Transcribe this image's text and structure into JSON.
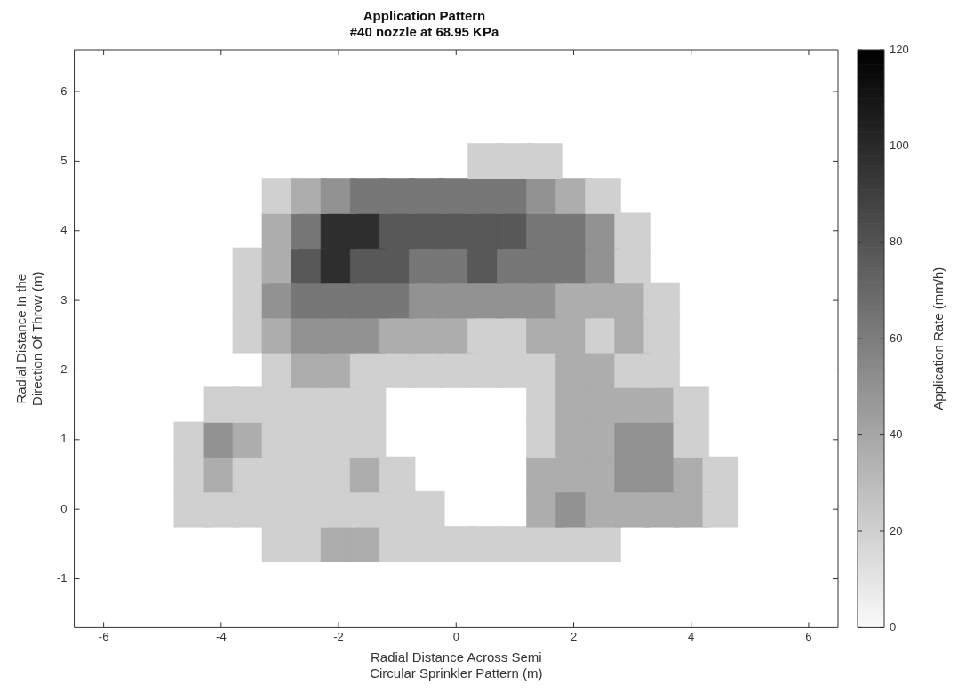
{
  "chart_data": {
    "type": "scatter",
    "title": "Application Pattern",
    "subtitle": "#40 nozzle at 68.95 KPa",
    "xlabel": "Radial Distance Across Semi\nCircular Sprinkler Pattern (m)",
    "ylabel": "Radial Distance In the\nDirection Of Throw (m)",
    "clabel": "Application Rate (mm/h)",
    "xlim": [
      -6.5,
      6.5
    ],
    "xticks": [
      -6,
      -4,
      -2,
      0,
      2,
      4,
      6
    ],
    "ylim": [
      -1.7,
      6.6
    ],
    "yticks": [
      -1,
      0,
      1,
      2,
      3,
      4,
      5,
      6
    ],
    "clim": [
      0,
      120
    ],
    "cticks": [
      0,
      20,
      40,
      60,
      80,
      100,
      120
    ],
    "marker": "square",
    "grid": false,
    "legend": false,
    "series": [
      {
        "x": [
          0.5,
          1,
          1.5
        ],
        "values": [
          5,
          5,
          5
        ],
        "cvalues": [
          20,
          20,
          20
        ],
        "colors": [
          "#d0d0d0",
          "#d0d0d0",
          "#d0d0d0"
        ]
      },
      {
        "x": [
          -3,
          -2.5,
          -2,
          -1.5,
          -1,
          -0.5,
          0,
          0.5,
          1,
          1.5,
          2,
          2.5
        ],
        "values": [
          4.5,
          4.5,
          4.5,
          4.5,
          4.5,
          4.5,
          4.5,
          4.5,
          4.5,
          4.5,
          4.5,
          4.5
        ],
        "cvalues": [
          20,
          37,
          50,
          63,
          63,
          63,
          63,
          63,
          63,
          50,
          37,
          20
        ],
        "colors": [
          "#d0d0d0",
          "#adadad",
          "#929292",
          "#777777",
          "#777777",
          "#777777",
          "#777777",
          "#777777",
          "#777777",
          "#929292",
          "#adadad",
          "#d0d0d0"
        ]
      },
      {
        "x": [
          -3,
          -2.5,
          -2,
          -1.5,
          -1,
          -0.5,
          0,
          0.5,
          1,
          1.5,
          2,
          2.5,
          3
        ],
        "values": [
          4,
          4,
          4,
          4,
          4,
          4,
          4,
          4,
          4,
          4,
          4,
          4,
          4
        ],
        "cvalues": [
          37,
          63,
          98,
          98,
          78,
          78,
          78,
          78,
          78,
          63,
          63,
          50,
          20
        ],
        "colors": [
          "#adadad",
          "#777777",
          "#2e2e2e",
          "#2e2e2e",
          "#585858",
          "#585858",
          "#585858",
          "#585858",
          "#585858",
          "#777777",
          "#777777",
          "#929292",
          "#d0d0d0"
        ]
      },
      {
        "x": [
          -3.5,
          -3,
          -2.5,
          -2,
          -1.5,
          -1,
          -0.5,
          0,
          0.5,
          1,
          1.5,
          2,
          2.5,
          3
        ],
        "values": [
          3.5,
          3.5,
          3.5,
          3.5,
          3.5,
          3.5,
          3.5,
          3.5,
          3.5,
          3.5,
          3.5,
          3.5,
          3.5,
          3.5
        ],
        "cvalues": [
          20,
          37,
          78,
          98,
          78,
          78,
          63,
          63,
          78,
          63,
          63,
          63,
          50,
          20
        ],
        "colors": [
          "#d0d0d0",
          "#adadad",
          "#585858",
          "#2e2e2e",
          "#585858",
          "#585858",
          "#777777",
          "#777777",
          "#585858",
          "#777777",
          "#777777",
          "#777777",
          "#929292",
          "#d0d0d0"
        ]
      },
      {
        "x": [
          -3.5,
          -3,
          -2.5,
          -2,
          -1.5,
          -1,
          -0.5,
          0,
          0.5,
          1,
          1.5,
          2,
          2.5,
          3,
          3.5
        ],
        "values": [
          3,
          3,
          3,
          3,
          3,
          3,
          3,
          3,
          3,
          3,
          3,
          3,
          3,
          3,
          3
        ],
        "cvalues": [
          20,
          50,
          63,
          63,
          63,
          63,
          50,
          50,
          50,
          50,
          50,
          37,
          37,
          37,
          20
        ],
        "colors": [
          "#d0d0d0",
          "#929292",
          "#777777",
          "#777777",
          "#777777",
          "#777777",
          "#929292",
          "#929292",
          "#929292",
          "#929292",
          "#929292",
          "#adadad",
          "#adadad",
          "#adadad",
          "#d0d0d0"
        ]
      },
      {
        "x": [
          -3.5,
          -3,
          -2.5,
          -2,
          -1.5,
          -1,
          -0.5,
          0,
          0.5,
          1,
          1.5,
          2,
          2.5,
          3,
          3.5
        ],
        "values": [
          2.5,
          2.5,
          2.5,
          2.5,
          2.5,
          2.5,
          2.5,
          2.5,
          2.5,
          2.5,
          2.5,
          2.5,
          2.5,
          2.5,
          2.5
        ],
        "cvalues": [
          20,
          37,
          50,
          50,
          50,
          37,
          37,
          37,
          20,
          20,
          37,
          37,
          20,
          37,
          20
        ],
        "colors": [
          "#d0d0d0",
          "#adadad",
          "#929292",
          "#929292",
          "#929292",
          "#adadad",
          "#adadad",
          "#adadad",
          "#d0d0d0",
          "#d0d0d0",
          "#adadad",
          "#adadad",
          "#d0d0d0",
          "#adadad",
          "#d0d0d0"
        ]
      },
      {
        "x": [
          -3,
          -2.5,
          -2,
          -1.5,
          -1,
          -0.5,
          0,
          0.5,
          1,
          1.5,
          2,
          2.5,
          3,
          3.5
        ],
        "values": [
          2,
          2,
          2,
          2,
          2,
          2,
          2,
          2,
          2,
          2,
          2,
          2,
          2,
          2
        ],
        "cvalues": [
          20,
          37,
          37,
          20,
          20,
          20,
          20,
          20,
          20,
          20,
          37,
          37,
          20,
          20
        ],
        "colors": [
          "#d0d0d0",
          "#adadad",
          "#adadad",
          "#d0d0d0",
          "#d0d0d0",
          "#d0d0d0",
          "#d0d0d0",
          "#d0d0d0",
          "#d0d0d0",
          "#d0d0d0",
          "#adadad",
          "#adadad",
          "#d0d0d0",
          "#d0d0d0"
        ]
      },
      {
        "x": [
          -4,
          -3.5,
          -3,
          -2.5,
          -2,
          -1.5,
          1.5,
          2,
          2.5,
          3,
          3.5,
          4
        ],
        "values": [
          1.5,
          1.5,
          1.5,
          1.5,
          1.5,
          1.5,
          1.5,
          1.5,
          1.5,
          1.5,
          1.5,
          1.5
        ],
        "cvalues": [
          20,
          20,
          20,
          20,
          20,
          20,
          20,
          37,
          37,
          37,
          37,
          20
        ],
        "colors": [
          "#d0d0d0",
          "#d0d0d0",
          "#d0d0d0",
          "#d0d0d0",
          "#d0d0d0",
          "#d0d0d0",
          "#d0d0d0",
          "#adadad",
          "#adadad",
          "#adadad",
          "#adadad",
          "#d0d0d0"
        ]
      },
      {
        "x": [
          -4.5,
          -4,
          -3.5,
          -3,
          -2.5,
          -2,
          -1.5,
          1.5,
          2,
          2.5,
          3,
          3.5,
          4
        ],
        "values": [
          1,
          1,
          1,
          1,
          1,
          1,
          1,
          1,
          1,
          1,
          1,
          1,
          1
        ],
        "cvalues": [
          20,
          50,
          37,
          20,
          20,
          20,
          20,
          20,
          37,
          37,
          50,
          50,
          20
        ],
        "colors": [
          "#d0d0d0",
          "#929292",
          "#adadad",
          "#d0d0d0",
          "#d0d0d0",
          "#d0d0d0",
          "#d0d0d0",
          "#d0d0d0",
          "#adadad",
          "#adadad",
          "#929292",
          "#929292",
          "#d0d0d0"
        ]
      },
      {
        "x": [
          -4.5,
          -4,
          -3.5,
          -3,
          -2.5,
          -2,
          -1.5,
          -1,
          1.5,
          2,
          2.5,
          3,
          3.5,
          4,
          4.5
        ],
        "values": [
          0.5,
          0.5,
          0.5,
          0.5,
          0.5,
          0.5,
          0.5,
          0.5,
          0.5,
          0.5,
          0.5,
          0.5,
          0.5,
          0.5,
          0.5
        ],
        "cvalues": [
          20,
          37,
          20,
          20,
          20,
          20,
          37,
          20,
          37,
          37,
          37,
          50,
          50,
          37,
          20
        ],
        "colors": [
          "#d0d0d0",
          "#adadad",
          "#d0d0d0",
          "#d0d0d0",
          "#d0d0d0",
          "#d0d0d0",
          "#adadad",
          "#d0d0d0",
          "#adadad",
          "#adadad",
          "#adadad",
          "#929292",
          "#929292",
          "#adadad",
          "#d0d0d0"
        ]
      },
      {
        "x": [
          -4.5,
          -4,
          -3.5,
          -3,
          -2.5,
          -2,
          -1.5,
          -1,
          -0.5,
          1.5,
          2,
          2.5,
          3,
          3.5,
          4,
          4.5
        ],
        "values": [
          0,
          0,
          0,
          0,
          0,
          0,
          0,
          0,
          0,
          0,
          0,
          0,
          0,
          0,
          0,
          0
        ],
        "cvalues": [
          20,
          20,
          20,
          20,
          20,
          20,
          20,
          20,
          20,
          37,
          50,
          37,
          37,
          37,
          37,
          20
        ],
        "colors": [
          "#d0d0d0",
          "#d0d0d0",
          "#d0d0d0",
          "#d0d0d0",
          "#d0d0d0",
          "#d0d0d0",
          "#d0d0d0",
          "#d0d0d0",
          "#d0d0d0",
          "#adadad",
          "#929292",
          "#adadad",
          "#adadad",
          "#adadad",
          "#adadad",
          "#d0d0d0"
        ]
      },
      {
        "x": [
          -3,
          -2.5,
          -2,
          -1.5,
          -1,
          -0.5,
          0,
          0.5,
          1,
          1.5,
          2,
          2.5
        ],
        "values": [
          -0.5,
          -0.5,
          -0.5,
          -0.5,
          -0.5,
          -0.5,
          -0.5,
          -0.5,
          -0.5,
          -0.5,
          -0.5,
          -0.5
        ],
        "cvalues": [
          20,
          20,
          37,
          37,
          20,
          20,
          20,
          20,
          20,
          20,
          20,
          20
        ],
        "colors": [
          "#d0d0d0",
          "#d0d0d0",
          "#adadad",
          "#adadad",
          "#d0d0d0",
          "#d0d0d0",
          "#d0d0d0",
          "#d0d0d0",
          "#d0d0d0",
          "#d0d0d0",
          "#d0d0d0",
          "#d0d0d0"
        ]
      }
    ]
  }
}
